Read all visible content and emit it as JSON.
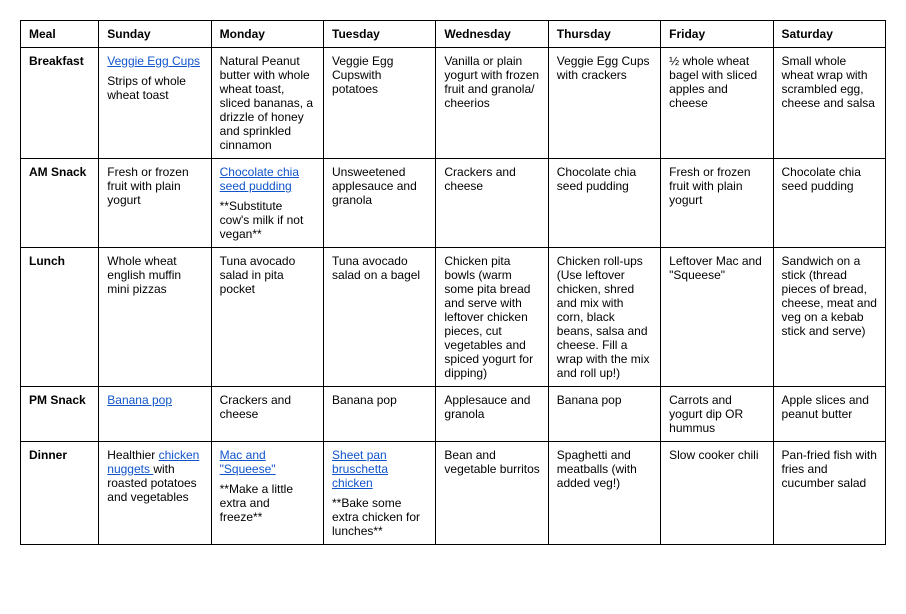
{
  "headers": [
    "Meal",
    "Sunday",
    "Monday",
    "Tuesday",
    "Wednesday",
    "Thursday",
    "Friday",
    "Saturday"
  ],
  "rows": [
    {
      "label": "Breakfast",
      "cells": [
        [
          {
            "link": "Veggie Egg Cups"
          },
          {
            "text": ""
          },
          {
            "text": "Strips of whole wheat toast"
          }
        ],
        [
          {
            "text": "Natural Peanut butter with whole wheat toast, sliced bananas, a drizzle of honey and sprinkled cinnamon"
          }
        ],
        [
          {
            "text": "Veggie Egg Cups"
          },
          {
            "text": "with potatoes"
          }
        ],
        [
          {
            "text": "Vanilla or plain yogurt with frozen fruit and granola/ cheerios"
          }
        ],
        [
          {
            "text": "Veggie Egg Cups with crackers"
          }
        ],
        [
          {
            "text": "½ whole wheat bagel with sliced apples and cheese"
          }
        ],
        [
          {
            "text": "Small whole wheat wrap with scrambled egg, cheese and salsa"
          }
        ]
      ]
    },
    {
      "label": "AM Snack",
      "cells": [
        [
          {
            "text": "Fresh or frozen fruit with plain yogurt"
          }
        ],
        [
          {
            "link": "Chocolate chia seed pudding"
          },
          {
            "text": ""
          },
          {
            "text": "**Substitute cow's milk if not vegan**"
          }
        ],
        [
          {
            "text": "Unsweetened applesauce and granola"
          }
        ],
        [
          {
            "text": "Crackers and cheese"
          }
        ],
        [
          {
            "text": "Chocolate chia seed pudding"
          }
        ],
        [
          {
            "text": "Fresh or frozen fruit with plain yogurt"
          }
        ],
        [
          {
            "text": "Chocolate chia seed pudding"
          }
        ]
      ]
    },
    {
      "label": "Lunch",
      "cells": [
        [
          {
            "text": "Whole wheat english muffin mini pizzas"
          }
        ],
        [
          {
            "text": "Tuna avocado salad in pita pocket"
          }
        ],
        [
          {
            "text": "Tuna avocado salad on a bagel"
          }
        ],
        [
          {
            "text": "Chicken pita bowls (warm some pita bread and serve with leftover chicken pieces, cut vegetables and spiced yogurt for dipping)"
          }
        ],
        [
          {
            "text": "Chicken roll-ups (Use leftover chicken, shred and mix with corn, black beans, salsa and cheese. Fill a wrap with the mix and roll up!)"
          }
        ],
        [
          {
            "text": "Leftover Mac and \"Squeese\""
          }
        ],
        [
          {
            "text": "Sandwich on a stick (thread pieces of bread, cheese, meat and veg on a kebab stick and serve)"
          }
        ]
      ]
    },
    {
      "label": "PM Snack",
      "cells": [
        [
          {
            "link": "Banana pop"
          }
        ],
        [
          {
            "text": "Crackers and cheese"
          }
        ],
        [
          {
            "text": "Banana pop"
          }
        ],
        [
          {
            "text": "Applesauce and granola"
          }
        ],
        [
          {
            "text": "Banana pop"
          }
        ],
        [
          {
            "text": "Carrots and yogurt dip OR hummus"
          }
        ],
        [
          {
            "text": "Apple slices and peanut butter"
          }
        ]
      ]
    },
    {
      "label": "Dinner",
      "cells": [
        [
          {
            "text": "Healthier "
          },
          {
            "link": "chicken nuggets "
          },
          {
            "text": "with roasted potatoes and vegetables"
          }
        ],
        [
          {
            "link": "Mac and \"Squeese\""
          },
          {
            "text": ""
          },
          {
            "text": "**Make a little extra and freeze**"
          }
        ],
        [
          {
            "link": "Sheet pan bruschetta chicken"
          },
          {
            "text": ""
          },
          {
            "text": "**Bake some extra chicken for lunches**"
          }
        ],
        [
          {
            "text": "Bean and vegetable burritos"
          }
        ],
        [
          {
            "text": "Spaghetti and meatballs (with added veg!)"
          }
        ],
        [
          {
            "text": "Slow cooker chili"
          }
        ],
        [
          {
            "text": "Pan-fried fish with fries and cucumber salad"
          }
        ]
      ]
    }
  ]
}
